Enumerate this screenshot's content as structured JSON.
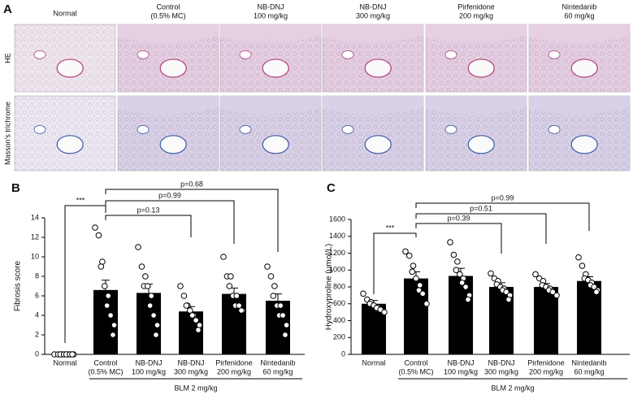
{
  "panel_a": {
    "label": "A",
    "columns": [
      {
        "name": "Normal"
      },
      {
        "name": "Control",
        "sub": "(0.5% MC)"
      },
      {
        "name": "NB-DNJ",
        "sub": "100 mg/kg"
      },
      {
        "name": "NB-DNJ",
        "sub": "300 mg/kg"
      },
      {
        "name": "Pirfenidone",
        "sub": "200 mg/kg"
      },
      {
        "name": "Nintedanib",
        "sub": "60 mg/kg"
      }
    ],
    "rows": [
      "HE",
      "Masson's trichrome"
    ]
  },
  "chart_data": [
    {
      "type": "bar",
      "panel_label": "B",
      "y_label": "Fibrosis score",
      "color": "#000000",
      "categories": [
        "Normal",
        "Control",
        "NB-DNJ",
        "NB-DNJ",
        "Pirfenidone",
        "Nintedanib"
      ],
      "category_sublabels": [
        null,
        "(0.5% MC)",
        "100 mg/kg",
        "300 mg/kg",
        "200 mg/kg",
        "60 mg/kg"
      ],
      "values": [
        0,
        6.6,
        6.3,
        4.4,
        6.2,
        5.5
      ],
      "errors": [
        0,
        1.0,
        0.9,
        0.5,
        0.6,
        0.7
      ],
      "points": [
        [
          0,
          0,
          0,
          0,
          0,
          0,
          0,
          0,
          0,
          0
        ],
        [
          13,
          12.2,
          9.5,
          9,
          7,
          6,
          5,
          4,
          3,
          2
        ],
        [
          11,
          9,
          8,
          7,
          7,
          6,
          5,
          4,
          3,
          2
        ],
        [
          7,
          6,
          5,
          5,
          4.5,
          4,
          4,
          3.5,
          3,
          2.5
        ],
        [
          10,
          8,
          8,
          7,
          6,
          6,
          5,
          5,
          4.5,
          4.5
        ],
        [
          9,
          8,
          7,
          6,
          5,
          5,
          4,
          4,
          3,
          2
        ]
      ],
      "ylim": [
        0,
        14
      ],
      "yticks": [
        0,
        2,
        4,
        6,
        8,
        10,
        12,
        14
      ],
      "annotations": [
        "***",
        "p=0.13",
        "p=0.99",
        "p=0.68"
      ],
      "group_label": "BLM 2 mg/kg"
    },
    {
      "type": "bar",
      "panel_label": "C",
      "y_label": "Hydroxyproline (μmol/L)",
      "color": "#000000",
      "categories": [
        "Normal",
        "Control",
        "NB-DNJ",
        "NB-DNJ",
        "Pirfenidone",
        "Nintedanib"
      ],
      "category_sublabels": [
        null,
        "(0.5% MC)",
        "100 mg/kg",
        "300 mg/kg",
        "200 mg/kg",
        "60 mg/kg"
      ],
      "values": [
        600,
        900,
        930,
        800,
        800,
        870
      ],
      "errors": [
        40,
        80,
        90,
        50,
        40,
        50
      ],
      "points": [
        [
          720,
          650,
          620,
          600,
          580,
          560,
          550,
          530,
          500
        ],
        [
          1220,
          1170,
          1050,
          980,
          900,
          820,
          760,
          720,
          600
        ],
        [
          1330,
          1180,
          1100,
          1000,
          950,
          900,
          850,
          800,
          700,
          650
        ],
        [
          960,
          900,
          870,
          830,
          800,
          780,
          760,
          740,
          700,
          650
        ],
        [
          950,
          900,
          870,
          820,
          800,
          780,
          760,
          740,
          700
        ],
        [
          1150,
          1050,
          950,
          900,
          880,
          850,
          820,
          800,
          760,
          740
        ]
      ],
      "ylim": [
        0,
        1600
      ],
      "yticks": [
        0,
        200,
        400,
        600,
        800,
        1000,
        1200,
        1400,
        1600
      ],
      "annotations": [
        "***",
        "p=0.39",
        "p=0.51",
        "p=0.99"
      ],
      "group_label": "BLM 2 mg/kg"
    }
  ]
}
